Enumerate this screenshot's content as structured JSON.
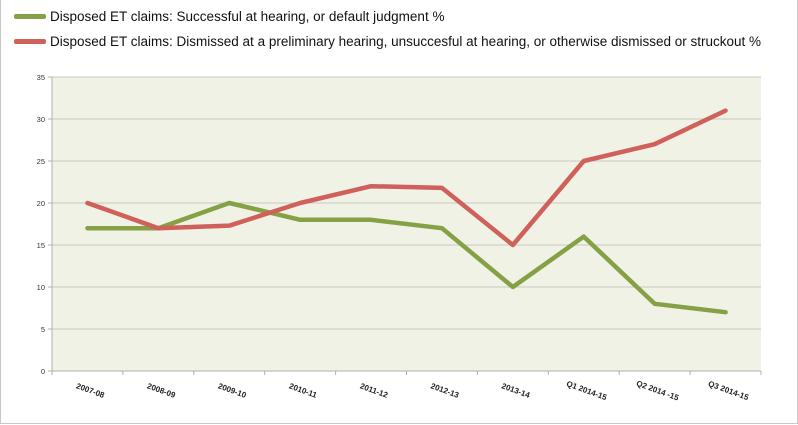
{
  "chart_data": {
    "type": "line",
    "categories": [
      "2007-08",
      "2008-09",
      "2009-10",
      "2010-11",
      "2011-12",
      "2012-13",
      "2013-14",
      "Q1 2014-15",
      "Q2 2014 -15",
      "Q3 2014-15"
    ],
    "series": [
      {
        "name": "Disposed ET claims: Successful at hearing, or default judgment %",
        "color": "#86a046",
        "values": [
          17,
          17,
          20,
          18,
          18,
          17,
          10,
          16,
          8,
          7
        ]
      },
      {
        "name": "Disposed ET claims: Dismissed at a preliminary hearing, unsuccesful at hearing, or otherwise dismissed or struckout %",
        "color": "#d0605a",
        "values": [
          20,
          17,
          17.3,
          20,
          22,
          21.8,
          15,
          25,
          27,
          31
        ]
      }
    ],
    "yticks": [
      "0",
      "5",
      "10",
      "15",
      "20",
      "25",
      "30",
      "35"
    ],
    "ylim": [
      0,
      35
    ],
    "grid": true,
    "legend": "top-left",
    "plot_background": "#f0f2e6"
  }
}
